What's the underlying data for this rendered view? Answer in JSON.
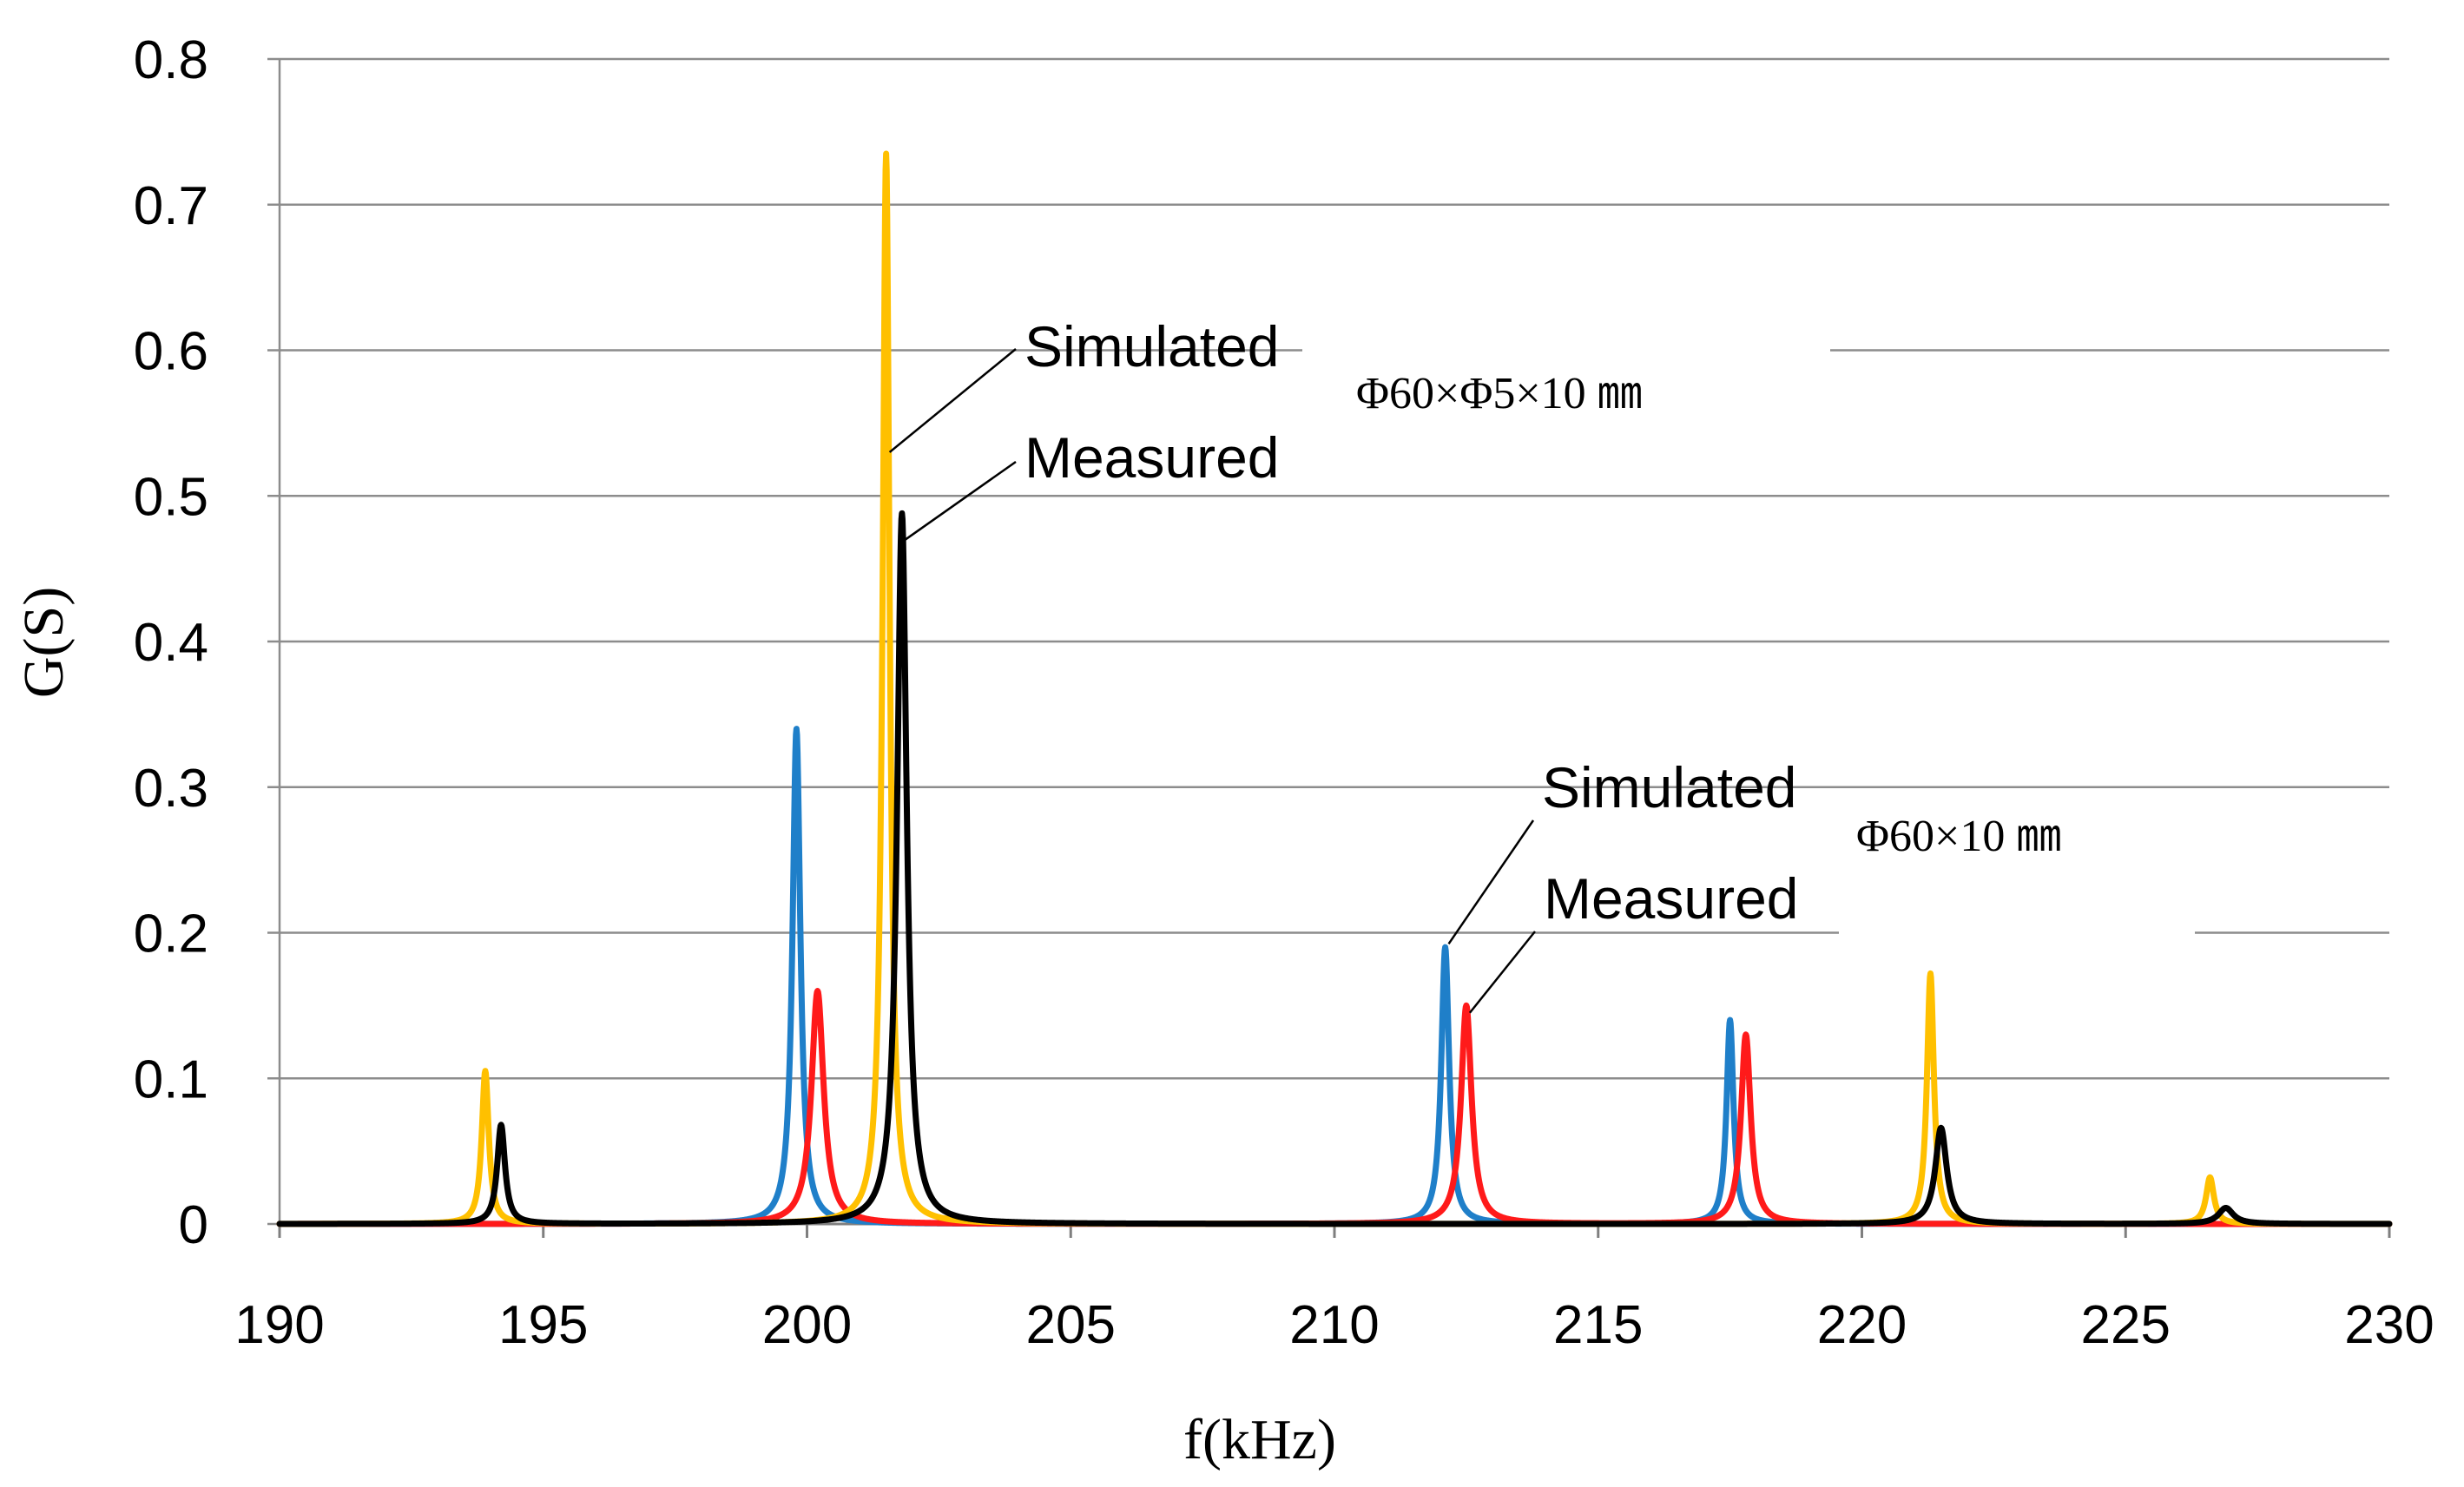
{
  "chart_data": {
    "type": "line",
    "title": "",
    "xlabel": "f(kHz)",
    "ylabel": "G(S)",
    "xlim": [
      190,
      230
    ],
    "ylim": [
      0,
      0.8
    ],
    "xticks": [
      190,
      195,
      200,
      205,
      210,
      215,
      220,
      225,
      230
    ],
    "yticks": [
      0,
      0.1,
      0.2,
      0.3,
      0.4,
      0.5,
      0.6,
      0.7,
      0.8
    ],
    "grid": true,
    "series": [
      {
        "name": "Simulated Φ60×10 mm",
        "color": "#1f7fc9",
        "peaks": [
          {
            "f": 199.8,
            "g": 0.34,
            "w": 0.09
          },
          {
            "f": 212.1,
            "g": 0.19,
            "w": 0.09
          },
          {
            "f": 217.5,
            "g": 0.14,
            "w": 0.08
          }
        ]
      },
      {
        "name": "Measured Φ60×10 mm",
        "color": "#ff1a1a",
        "peaks": [
          {
            "f": 200.2,
            "g": 0.16,
            "w": 0.14
          },
          {
            "f": 212.5,
            "g": 0.15,
            "w": 0.12
          },
          {
            "f": 217.8,
            "g": 0.13,
            "w": 0.11
          }
        ]
      },
      {
        "name": "Simulated Φ60×Φ5×10 mm",
        "color": "#ffc000",
        "peaks": [
          {
            "f": 193.9,
            "g": 0.105,
            "w": 0.08
          },
          {
            "f": 201.5,
            "g": 0.735,
            "w": 0.08
          },
          {
            "f": 221.3,
            "g": 0.172,
            "w": 0.08
          },
          {
            "f": 226.6,
            "g": 0.032,
            "w": 0.09
          }
        ]
      },
      {
        "name": "Measured Φ60×Φ5×10 mm",
        "color": "#000000",
        "peaks": [
          {
            "f": 194.2,
            "g": 0.068,
            "w": 0.09
          },
          {
            "f": 201.8,
            "g": 0.488,
            "w": 0.11
          },
          {
            "f": 221.5,
            "g": 0.066,
            "w": 0.13
          },
          {
            "f": 226.9,
            "g": 0.011,
            "w": 0.17
          }
        ]
      }
    ],
    "annotations": {
      "group1": {
        "dimension": "Φ60×Φ5×10 ㎜",
        "simulated": "Simulated",
        "measured": "Measured",
        "simulated_target": {
          "f": 201.5,
          "g": 0.53
        },
        "measured_target": {
          "f": 201.8,
          "g": 0.47
        }
      },
      "group2": {
        "dimension": "Φ60×10 ㎜",
        "simulated": "Simulated",
        "measured": "Measured",
        "simulated_target": {
          "f": 212.1,
          "g": 0.19
        },
        "measured_target": {
          "f": 212.5,
          "g": 0.145
        }
      }
    }
  }
}
